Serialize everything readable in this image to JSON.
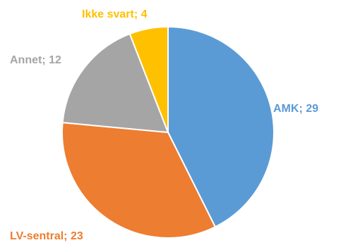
{
  "chart_data": {
    "type": "pie",
    "title": "",
    "slices": [
      {
        "label": "AMK",
        "value": 29,
        "color": "#5B9BD5",
        "data_label": "AMK; 29"
      },
      {
        "label": "LV-sentral",
        "value": 23,
        "color": "#ED7D31",
        "data_label": "LV-sentral; 23"
      },
      {
        "label": "Annet",
        "value": 12,
        "color": "#A5A5A5",
        "data_label": "Annet; 12"
      },
      {
        "label": "Ikke svart",
        "value": 4,
        "color": "#FFC000",
        "data_label": "Ikke svart; 4"
      }
    ],
    "start_angle_deg": 0,
    "direction": "clockwise",
    "legend": "none"
  }
}
